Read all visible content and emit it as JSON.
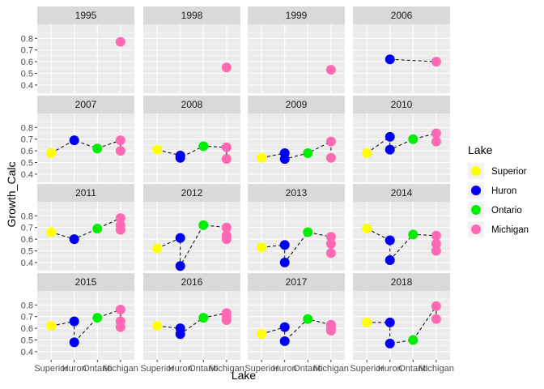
{
  "chart_data": {
    "type": "scatter",
    "xlabel": "Lake",
    "ylabel": "Growth_Calc",
    "categories": [
      "Superior",
      "Huron",
      "Ontario",
      "Michigan"
    ],
    "ylim": [
      0.33,
      0.92
    ],
    "yticks": [
      0.4,
      0.5,
      0.6,
      0.7,
      0.8
    ],
    "ytick_labels": [
      "0.4",
      "0.5",
      "0.6",
      "0.7",
      "0.8"
    ],
    "grid": true,
    "legend": {
      "title": "Lake",
      "position": "right",
      "entries": [
        {
          "label": "Superior",
          "color": "#FFFF00"
        },
        {
          "label": "Huron",
          "color": "#0000EE"
        },
        {
          "label": "Ontario",
          "color": "#00EE00"
        },
        {
          "label": "Michigan",
          "color": "#FF69B4"
        }
      ]
    },
    "line_style": "dashed black connecting lakes in order",
    "panels": [
      {
        "year": "1995",
        "points": {
          "Michigan": [
            0.77
          ]
        }
      },
      {
        "year": "1998",
        "points": {
          "Michigan": [
            0.55
          ]
        }
      },
      {
        "year": "1999",
        "points": {
          "Michigan": [
            0.53
          ]
        }
      },
      {
        "year": "2006",
        "points": {
          "Huron": [
            0.62
          ],
          "Michigan": [
            0.6
          ]
        }
      },
      {
        "year": "2007",
        "points": {
          "Superior": [
            0.58
          ],
          "Huron": [
            0.69
          ],
          "Ontario": [
            0.62
          ],
          "Michigan": [
            0.69,
            0.6
          ]
        }
      },
      {
        "year": "2008",
        "points": {
          "Superior": [
            0.61
          ],
          "Huron": [
            0.56,
            0.54
          ],
          "Ontario": [
            0.64
          ],
          "Michigan": [
            0.63,
            0.53
          ]
        }
      },
      {
        "year": "2009",
        "points": {
          "Superior": [
            0.54
          ],
          "Huron": [
            0.58,
            0.53
          ],
          "Ontario": [
            0.58
          ],
          "Michigan": [
            0.68,
            0.54
          ]
        }
      },
      {
        "year": "2010",
        "points": {
          "Superior": [
            0.58
          ],
          "Huron": [
            0.72,
            0.61
          ],
          "Ontario": [
            0.7
          ],
          "Michigan": [
            0.75,
            0.68
          ]
        }
      },
      {
        "year": "2011",
        "points": {
          "Superior": [
            0.66
          ],
          "Huron": [
            0.6
          ],
          "Ontario": [
            0.69
          ],
          "Michigan": [
            0.78,
            0.72,
            0.68
          ]
        }
      },
      {
        "year": "2012",
        "points": {
          "Superior": [
            0.52
          ],
          "Huron": [
            0.61,
            0.37
          ],
          "Ontario": [
            0.72
          ],
          "Michigan": [
            0.7,
            0.63,
            0.6
          ]
        }
      },
      {
        "year": "2013",
        "points": {
          "Superior": [
            0.53
          ],
          "Huron": [
            0.55,
            0.4
          ],
          "Ontario": [
            0.66
          ],
          "Michigan": [
            0.62,
            0.56,
            0.48
          ]
        }
      },
      {
        "year": "2014",
        "points": {
          "Superior": [
            0.69
          ],
          "Huron": [
            0.59,
            0.42
          ],
          "Ontario": [
            0.64
          ],
          "Michigan": [
            0.63,
            0.56,
            0.5
          ]
        }
      },
      {
        "year": "2015",
        "points": {
          "Superior": [
            0.62
          ],
          "Huron": [
            0.66,
            0.48
          ],
          "Ontario": [
            0.69
          ],
          "Michigan": [
            0.76,
            0.66,
            0.61
          ]
        }
      },
      {
        "year": "2016",
        "points": {
          "Superior": [
            0.62
          ],
          "Huron": [
            0.6,
            0.55
          ],
          "Ontario": [
            0.69
          ],
          "Michigan": [
            0.73,
            0.7,
            0.67
          ]
        }
      },
      {
        "year": "2017",
        "points": {
          "Superior": [
            0.55
          ],
          "Huron": [
            0.61,
            0.49
          ],
          "Ontario": [
            0.68
          ],
          "Michigan": [
            0.63,
            0.6,
            0.58
          ]
        }
      },
      {
        "year": "2018",
        "points": {
          "Superior": [
            0.65
          ],
          "Huron": [
            0.65,
            0.47
          ],
          "Ontario": [
            0.5
          ],
          "Michigan": [
            0.79,
            0.68
          ]
        }
      }
    ]
  }
}
